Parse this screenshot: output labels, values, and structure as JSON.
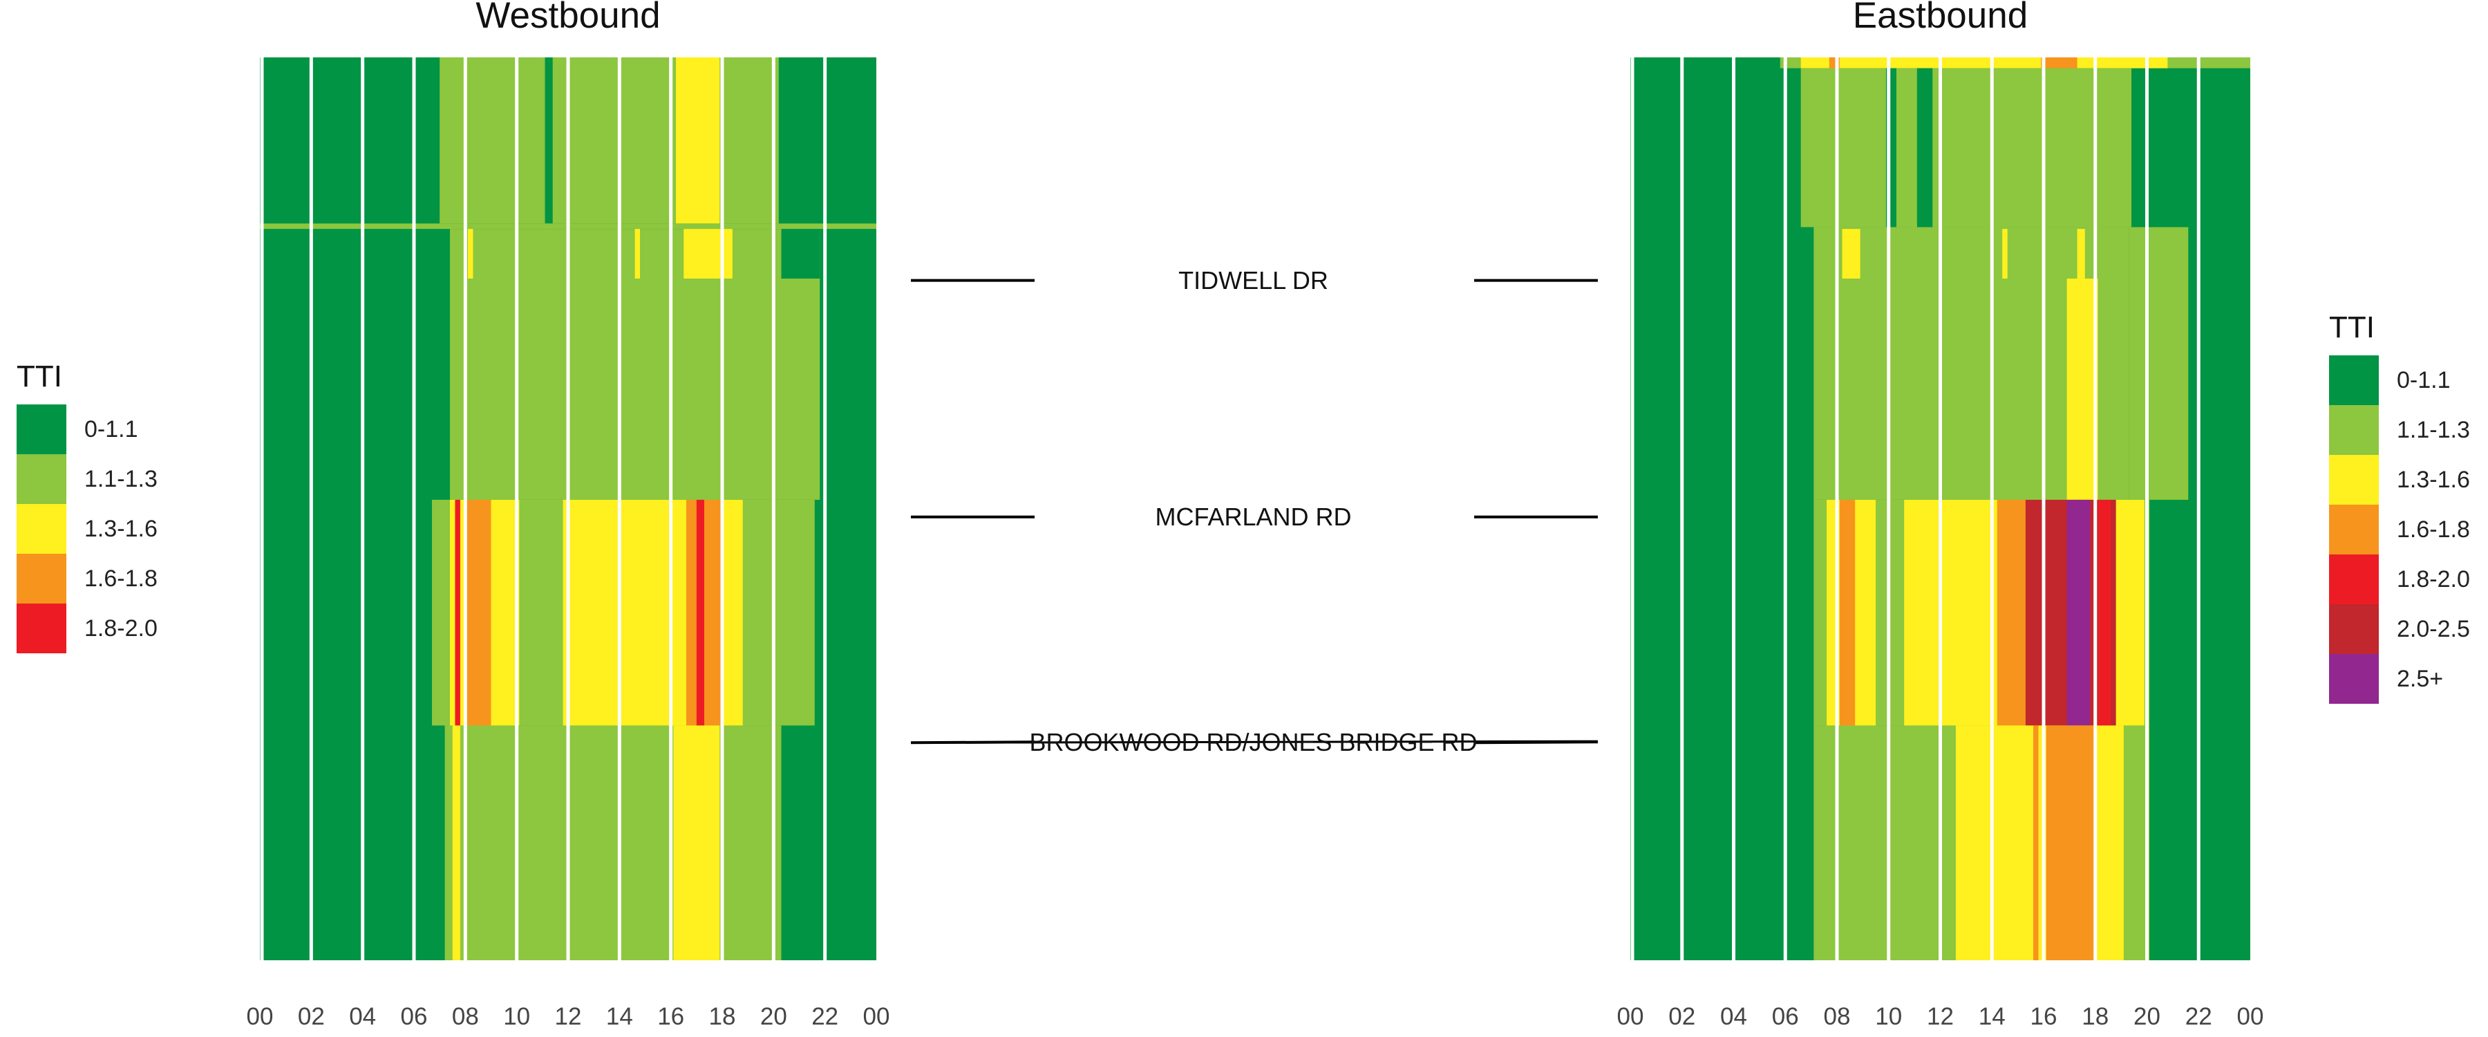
{
  "colors": {
    "0-1.1": "#009444",
    "1.1-1.3": "#8dc63f",
    "1.3-1.6": "#fff01f",
    "1.6-1.8": "#f7941d",
    "1.8-2.0": "#ed1c24",
    "2.0-2.5": "#c1272d",
    "2.5+": "#92278f",
    "gridline": "#ffffff",
    "road_line": "#000000"
  },
  "legend_left": {
    "title": "TTI",
    "items": [
      "0-1.1",
      "1.1-1.3",
      "1.3-1.6",
      "1.6-1.8",
      "1.8-2.0"
    ]
  },
  "legend_right": {
    "title": "TTI",
    "items": [
      "0-1.1",
      "1.1-1.3",
      "1.3-1.6",
      "1.6-1.8",
      "1.8-2.0",
      "2.0-2.5",
      "2.5+"
    ]
  },
  "roads": [
    "TIDWELL DR",
    "MCFARLAND RD",
    "BROOKWOOD RD/JONES BRIDGE RD"
  ],
  "chart_data": [
    {
      "type": "heatmap",
      "title": "Westbound",
      "xlabel": "",
      "ylabel": "",
      "x_range": [
        0,
        24
      ],
      "xticks": [
        "00",
        "02",
        "04",
        "06",
        "08",
        "10",
        "12",
        "14",
        "16",
        "18",
        "20",
        "22",
        "00"
      ],
      "y_range": [
        0,
        1
      ],
      "y_road_positions": {
        "TIDWELL DR": 0.247,
        "MCFARLAND RD": 0.509,
        "BROOKWOOD RD/JONES BRIDGE RD": 0.759
      },
      "grid": true,
      "legend_position": "left",
      "cells": [
        {
          "x0": 0,
          "x1": 24,
          "y0": 0,
          "y1": 1,
          "tti": "0-1.1"
        },
        {
          "x0": 7.0,
          "x1": 20.2,
          "y0": 0,
          "y1": 0.184,
          "tti": "1.1-1.3"
        },
        {
          "x0": 11.1,
          "x1": 11.4,
          "y0": 0,
          "y1": 0.184,
          "tti": "0-1.1"
        },
        {
          "x0": 16.2,
          "x1": 17.9,
          "y0": 0,
          "y1": 0.184,
          "tti": "1.3-1.6"
        },
        {
          "x0": 0,
          "x1": 24,
          "y0": 0.184,
          "y1": 0.19,
          "tti": "1.1-1.3"
        },
        {
          "x0": 7.4,
          "x1": 21.8,
          "y0": 0.19,
          "y1": 0.49,
          "tti": "1.1-1.3"
        },
        {
          "x0": 16.5,
          "x1": 18.4,
          "y0": 0.19,
          "y1": 0.245,
          "tti": "1.3-1.6"
        },
        {
          "x0": 8.1,
          "x1": 8.3,
          "y0": 0.19,
          "y1": 0.245,
          "tti": "1.3-1.6"
        },
        {
          "x0": 14.6,
          "x1": 14.8,
          "y0": 0.19,
          "y1": 0.245,
          "tti": "1.3-1.6"
        },
        {
          "x0": 20.3,
          "x1": 21.8,
          "y0": 0.19,
          "y1": 0.245,
          "tti": "0-1.1"
        },
        {
          "x0": 6.7,
          "x1": 21.6,
          "y0": 0.49,
          "y1": 0.74,
          "tti": "1.1-1.3"
        },
        {
          "x0": 7.4,
          "x1": 10.1,
          "y0": 0.49,
          "y1": 0.74,
          "tti": "1.3-1.6"
        },
        {
          "x0": 8.0,
          "x1": 9.0,
          "y0": 0.49,
          "y1": 0.74,
          "tti": "1.6-1.8"
        },
        {
          "x0": 7.6,
          "x1": 7.8,
          "y0": 0.49,
          "y1": 0.74,
          "tti": "1.8-2.0"
        },
        {
          "x0": 11.8,
          "x1": 18.8,
          "y0": 0.49,
          "y1": 0.74,
          "tti": "1.3-1.6"
        },
        {
          "x0": 16.6,
          "x1": 18.0,
          "y0": 0.49,
          "y1": 0.74,
          "tti": "1.6-1.8"
        },
        {
          "x0": 17.0,
          "x1": 17.3,
          "y0": 0.49,
          "y1": 0.74,
          "tti": "1.8-2.0"
        },
        {
          "x0": 7.2,
          "x1": 20.3,
          "y0": 0.74,
          "y1": 1,
          "tti": "1.1-1.3"
        },
        {
          "x0": 7.5,
          "x1": 7.8,
          "y0": 0.74,
          "y1": 1,
          "tti": "1.3-1.6"
        },
        {
          "x0": 16.1,
          "x1": 17.9,
          "y0": 0.74,
          "y1": 1,
          "tti": "1.3-1.6"
        }
      ]
    },
    {
      "type": "heatmap",
      "title": "Eastbound",
      "xlabel": "",
      "ylabel": "",
      "x_range": [
        0,
        24
      ],
      "xticks": [
        "00",
        "02",
        "04",
        "06",
        "08",
        "10",
        "12",
        "14",
        "16",
        "18",
        "20",
        "22",
        "00"
      ],
      "y_range": [
        0,
        1
      ],
      "y_road_positions": {
        "TIDWELL DR": 0.247,
        "MCFARLAND RD": 0.509,
        "BROOKWOOD RD/JONES BRIDGE RD": 0.759
      },
      "grid": true,
      "legend_position": "right",
      "cells": [
        {
          "x0": 0,
          "x1": 24,
          "y0": 0,
          "y1": 1,
          "tti": "0-1.1"
        },
        {
          "x0": 5.8,
          "x1": 24,
          "y0": 0,
          "y1": 0.012,
          "tti": "1.1-1.3"
        },
        {
          "x0": 6.6,
          "x1": 20.8,
          "y0": 0,
          "y1": 0.012,
          "tti": "1.3-1.6"
        },
        {
          "x0": 7.7,
          "x1": 8.1,
          "y0": 0,
          "y1": 0.012,
          "tti": "1.6-1.8"
        },
        {
          "x0": 15.9,
          "x1": 17.3,
          "y0": 0,
          "y1": 0.012,
          "tti": "1.6-1.8"
        },
        {
          "x0": 6.6,
          "x1": 19.4,
          "y0": 0.012,
          "y1": 0.188,
          "tti": "1.1-1.3"
        },
        {
          "x0": 9.9,
          "x1": 10.3,
          "y0": 0.012,
          "y1": 0.188,
          "tti": "0-1.1"
        },
        {
          "x0": 11.1,
          "x1": 11.7,
          "y0": 0.012,
          "y1": 0.188,
          "tti": "0-1.1"
        },
        {
          "x0": 7.1,
          "x1": 19.3,
          "y0": 0.188,
          "y1": 0.49,
          "tti": "1.1-1.3"
        },
        {
          "x0": 19.3,
          "x1": 21.6,
          "y0": 0.188,
          "y1": 0.49,
          "tti": "1.1-1.3"
        },
        {
          "x0": 8.2,
          "x1": 8.9,
          "y0": 0.19,
          "y1": 0.245,
          "tti": "1.3-1.6"
        },
        {
          "x0": 14.4,
          "x1": 14.6,
          "y0": 0.19,
          "y1": 0.245,
          "tti": "1.3-1.6"
        },
        {
          "x0": 17.3,
          "x1": 17.6,
          "y0": 0.19,
          "y1": 0.245,
          "tti": "1.3-1.6"
        },
        {
          "x0": 16.9,
          "x1": 18.1,
          "y0": 0.245,
          "y1": 0.49,
          "tti": "1.3-1.6"
        },
        {
          "x0": 7.1,
          "x1": 20.1,
          "y0": 0.49,
          "y1": 0.74,
          "tti": "1.1-1.3"
        },
        {
          "x0": 7.6,
          "x1": 9.5,
          "y0": 0.49,
          "y1": 0.74,
          "tti": "1.3-1.6"
        },
        {
          "x0": 8.1,
          "x1": 8.7,
          "y0": 0.49,
          "y1": 0.74,
          "tti": "1.6-1.8"
        },
        {
          "x0": 10.6,
          "x1": 19.9,
          "y0": 0.49,
          "y1": 0.74,
          "tti": "1.3-1.6"
        },
        {
          "x0": 14.2,
          "x1": 15.3,
          "y0": 0.49,
          "y1": 0.74,
          "tti": "1.6-1.8"
        },
        {
          "x0": 15.3,
          "x1": 18.8,
          "y0": 0.49,
          "y1": 0.74,
          "tti": "2.0-2.5"
        },
        {
          "x0": 16.9,
          "x1": 17.8,
          "y0": 0.49,
          "y1": 0.74,
          "tti": "2.5+"
        },
        {
          "x0": 18.1,
          "x1": 18.6,
          "y0": 0.49,
          "y1": 0.74,
          "tti": "1.8-2.0"
        },
        {
          "x0": 7.1,
          "x1": 20.1,
          "y0": 0.74,
          "y1": 1,
          "tti": "1.1-1.3"
        },
        {
          "x0": 12.6,
          "x1": 19.1,
          "y0": 0.74,
          "y1": 1,
          "tti": "1.3-1.6"
        },
        {
          "x0": 16.1,
          "x1": 18.0,
          "y0": 0.74,
          "y1": 1,
          "tti": "1.6-1.8"
        },
        {
          "x0": 15.6,
          "x1": 15.8,
          "y0": 0.74,
          "y1": 1,
          "tti": "1.6-1.8"
        }
      ]
    }
  ]
}
